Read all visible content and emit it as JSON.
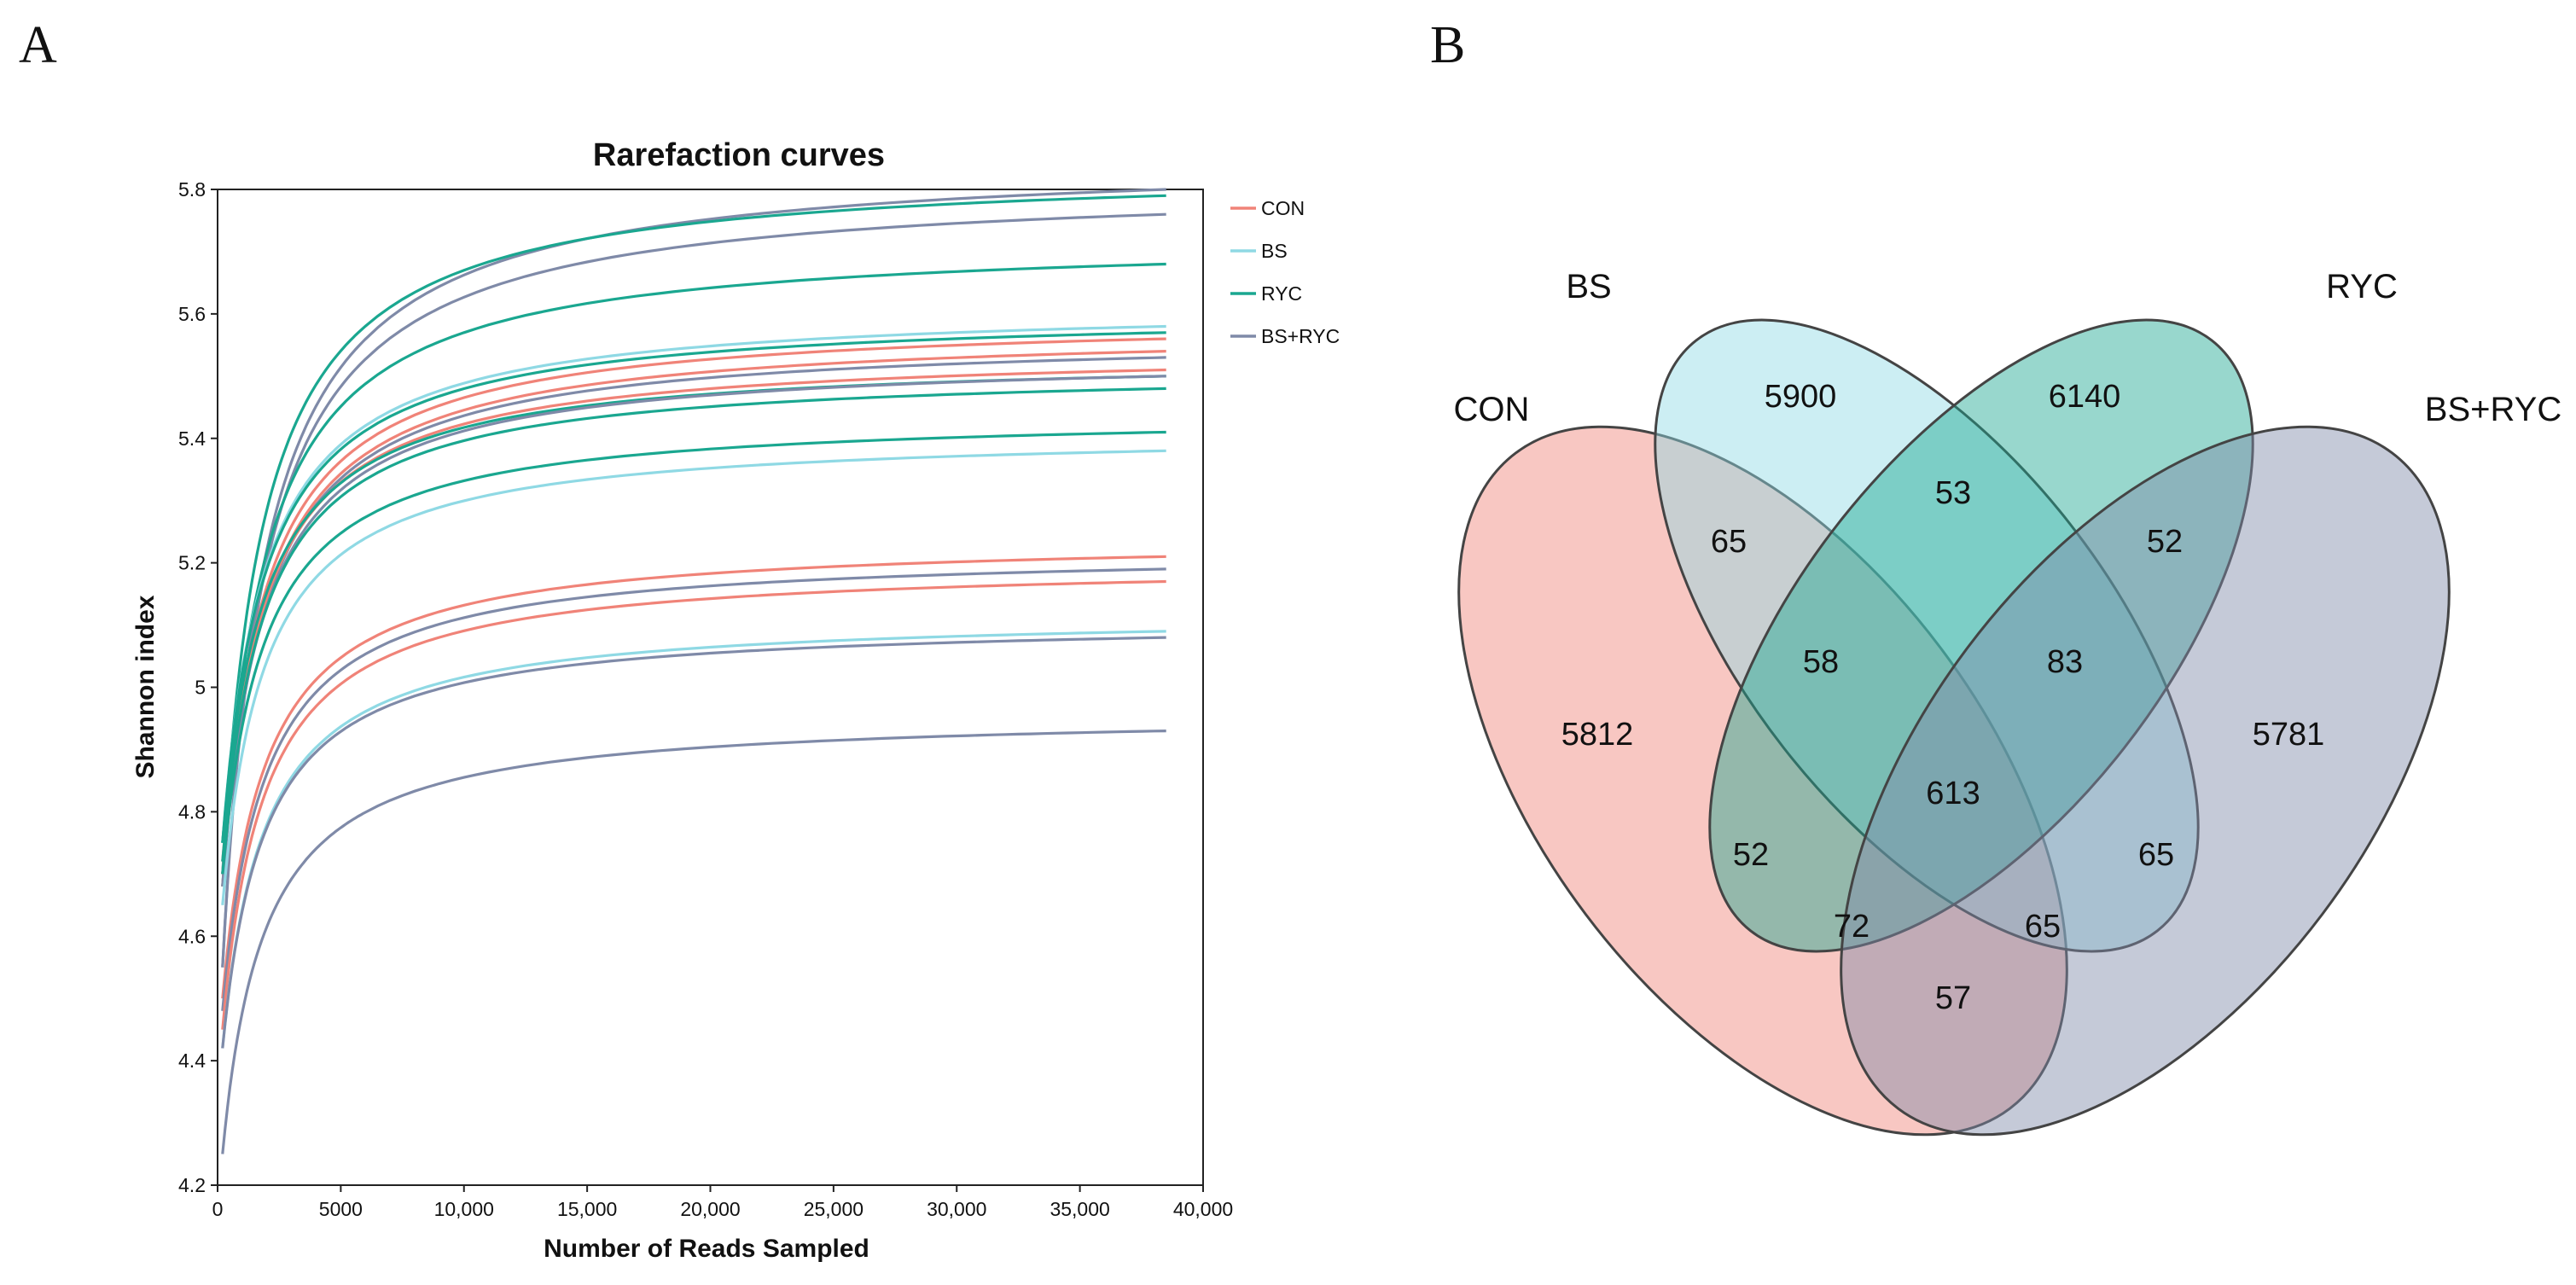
{
  "panels": {
    "a": "A",
    "b": "B"
  },
  "colors": {
    "CON": "#f08378",
    "BS": "#8fd9e4",
    "RYC": "#1aa790",
    "BS+RYC": "#7f8aa8"
  },
  "chart_data": [
    {
      "type": "line",
      "title": "Rarefaction curves",
      "xlabel": "Number of Reads Sampled",
      "ylabel": "Shannon index",
      "xlim": [
        0,
        40000
      ],
      "ylim": [
        4.2,
        5.8
      ],
      "xticks": [
        0,
        5000,
        10000,
        15000,
        20000,
        25000,
        30000,
        35000,
        40000
      ],
      "xtick_labels": [
        "0",
        "5000",
        "10,000",
        "15,000",
        "20,000",
        "25,000",
        "30,000",
        "35,000",
        "40,000"
      ],
      "yticks": [
        4.2,
        4.4,
        4.6,
        4.8,
        5,
        5.2,
        5.4,
        5.6,
        5.8
      ],
      "ytick_labels": [
        "4.2",
        "4.4",
        "4.6",
        "4.8",
        "5",
        "5.2",
        "5.4",
        "5.6",
        "5.8"
      ],
      "legend": [
        "CON",
        "BS",
        "RYC",
        "BS+RYC"
      ],
      "legend_position": "right-top",
      "x_end": 38500,
      "series": [
        {
          "group": "BS+RYC",
          "start": 4.55,
          "final": 5.8
        },
        {
          "group": "BS+RYC",
          "start": 4.55,
          "final": 5.76
        },
        {
          "group": "RYC",
          "start": 4.7,
          "final": 5.79
        },
        {
          "group": "RYC",
          "start": 4.68,
          "final": 5.68
        },
        {
          "group": "BS",
          "start": 4.75,
          "final": 5.58
        },
        {
          "group": "RYC",
          "start": 4.75,
          "final": 5.57
        },
        {
          "group": "CON",
          "start": 4.7,
          "final": 5.56
        },
        {
          "group": "CON",
          "start": 4.68,
          "final": 5.54
        },
        {
          "group": "BS+RYC",
          "start": 4.68,
          "final": 5.53
        },
        {
          "group": "CON",
          "start": 4.72,
          "final": 5.51
        },
        {
          "group": "RYC",
          "start": 4.75,
          "final": 5.5
        },
        {
          "group": "BS+RYC",
          "start": 4.7,
          "final": 5.5
        },
        {
          "group": "RYC",
          "start": 4.72,
          "final": 5.48
        },
        {
          "group": "RYC",
          "start": 4.7,
          "final": 5.41
        },
        {
          "group": "BS",
          "start": 4.65,
          "final": 5.38
        },
        {
          "group": "CON",
          "start": 4.5,
          "final": 5.21
        },
        {
          "group": "BS+RYC",
          "start": 4.48,
          "final": 5.19
        },
        {
          "group": "CON",
          "start": 4.45,
          "final": 5.17
        },
        {
          "group": "BS",
          "start": 4.42,
          "final": 5.09
        },
        {
          "group": "BS+RYC",
          "start": 4.42,
          "final": 5.08
        },
        {
          "group": "BS+RYC",
          "start": 4.25,
          "final": 4.93
        }
      ]
    },
    {
      "type": "venn",
      "sets": [
        "CON",
        "BS",
        "RYC",
        "BS+RYC"
      ],
      "regions": [
        {
          "sets": [
            "CON"
          ],
          "value": 5812
        },
        {
          "sets": [
            "BS"
          ],
          "value": 5900
        },
        {
          "sets": [
            "RYC"
          ],
          "value": 6140
        },
        {
          "sets": [
            "BS+RYC"
          ],
          "value": 5781
        },
        {
          "sets": [
            "CON",
            "BS"
          ],
          "value": 65
        },
        {
          "sets": [
            "BS",
            "RYC"
          ],
          "value": 53
        },
        {
          "sets": [
            "RYC",
            "BS+RYC"
          ],
          "value": 52
        },
        {
          "sets": [
            "CON",
            "BS",
            "RYC"
          ],
          "value": 58
        },
        {
          "sets": [
            "BS",
            "RYC",
            "BS+RYC"
          ],
          "value": 83
        },
        {
          "sets": [
            "CON",
            "BS",
            "RYC",
            "BS+RYC"
          ],
          "value": 613
        },
        {
          "sets": [
            "CON",
            "RYC"
          ],
          "value": 52
        },
        {
          "sets": [
            "BS",
            "BS+RYC"
          ],
          "value": 65
        },
        {
          "sets": [
            "CON",
            "RYC",
            "BS+RYC"
          ],
          "value": 72
        },
        {
          "sets": [
            "CON",
            "BS",
            "BS+RYC"
          ],
          "value": 65
        },
        {
          "sets": [
            "CON",
            "BS+RYC"
          ],
          "value": 57
        }
      ]
    }
  ]
}
